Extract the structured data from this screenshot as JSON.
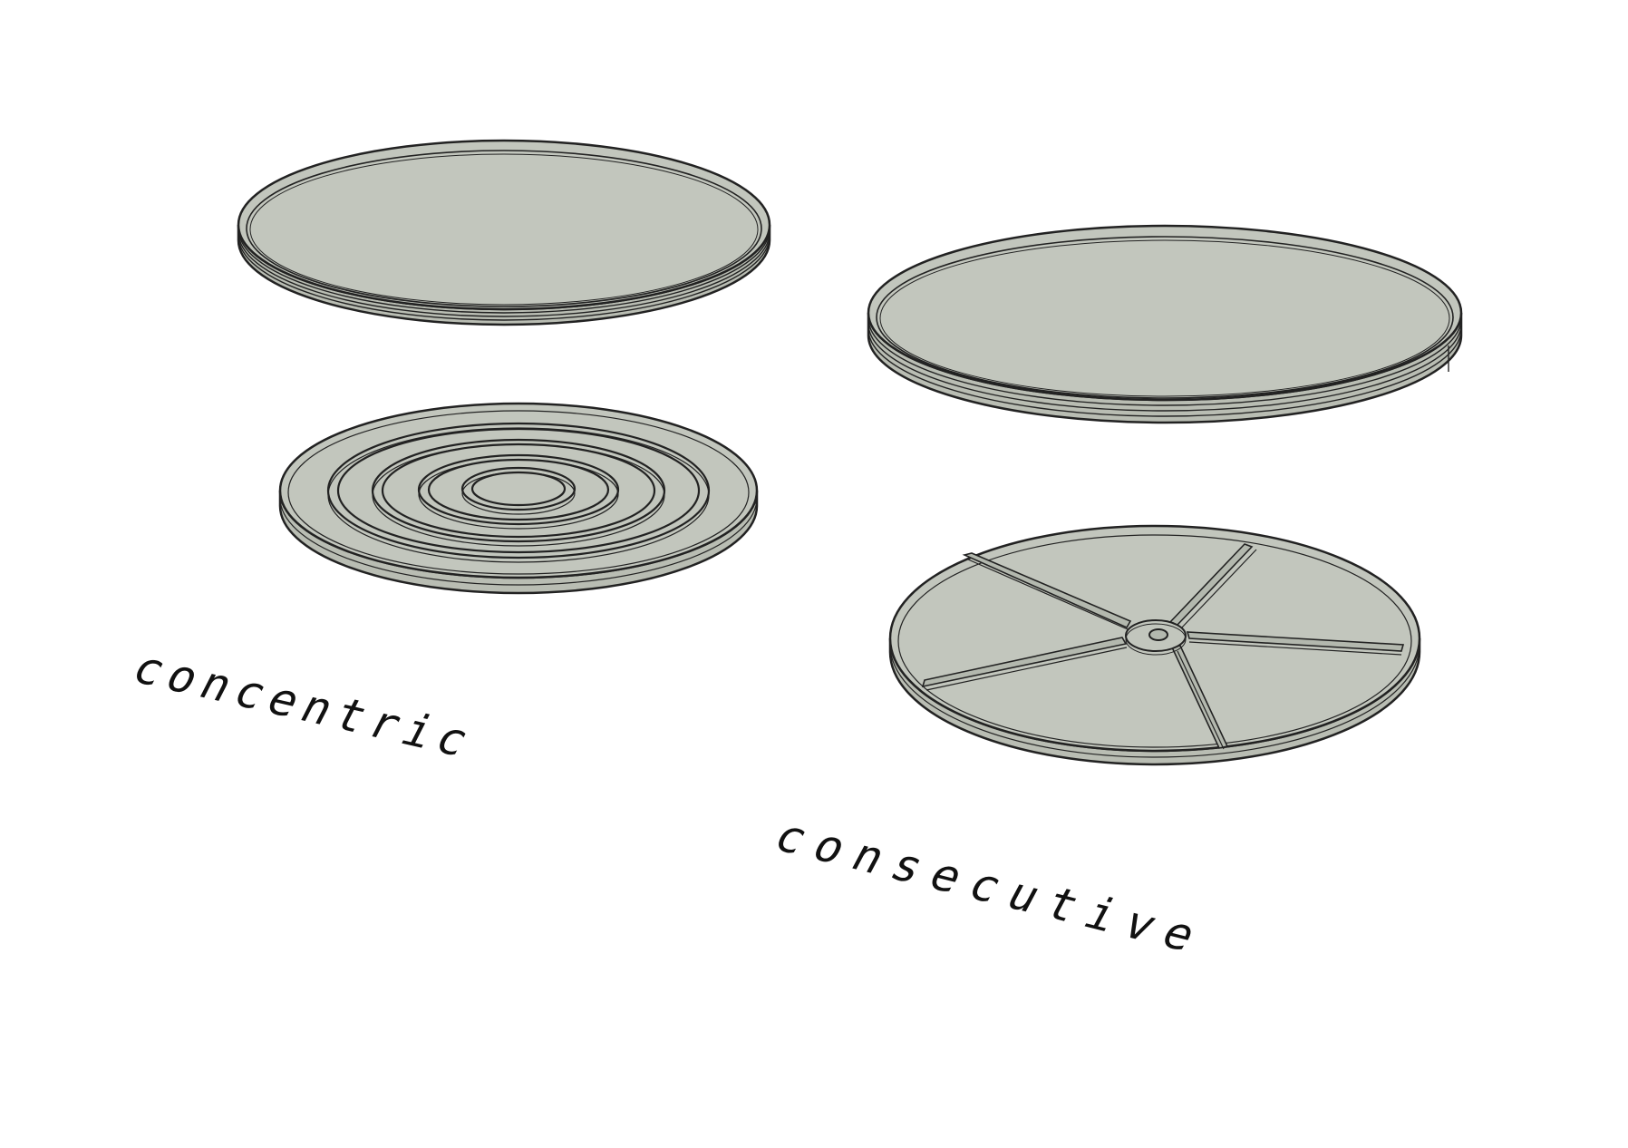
{
  "labels": {
    "concentric": "concentric",
    "consecutive": "consecutive"
  },
  "diagrams": {
    "concentric": {
      "lid": "plain disc lid",
      "base": "disc base with concentric ring walls"
    },
    "consecutive": {
      "lid": "plain disc lid",
      "base": "disc base with radial spoke walls"
    }
  },
  "colors": {
    "disc_face": "#c2c6bd",
    "disc_face_dark": "#b3b8ae",
    "outline": "#222222",
    "background": "#ffffff"
  }
}
